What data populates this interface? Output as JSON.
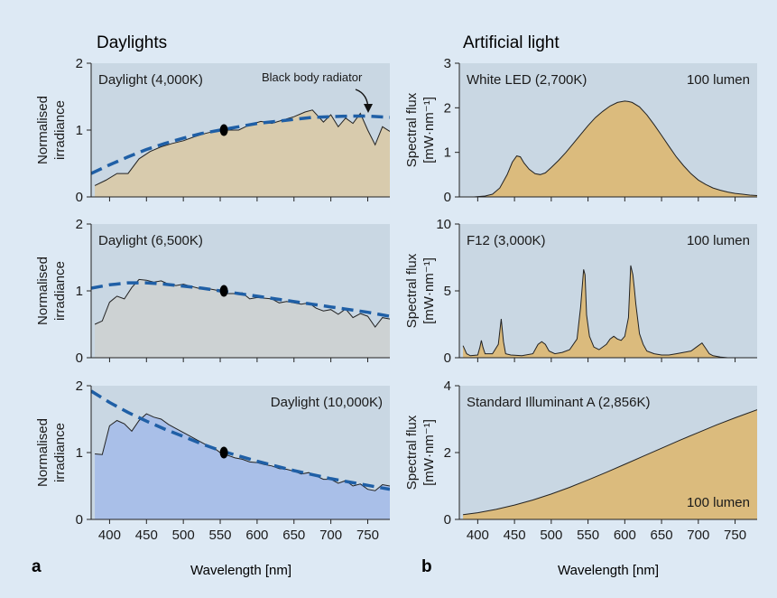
{
  "figure": {
    "left_title": "Daylights",
    "right_title": "Artificial light",
    "panel_a_label": "a",
    "panel_b_label": "b",
    "x_label": "Wavelength [nm]",
    "x_ticks": [
      "400",
      "450",
      "500",
      "550",
      "600",
      "650",
      "700",
      "750"
    ],
    "left_y_label": [
      "Normalised",
      "irradiance"
    ],
    "right_y_label": [
      "Spectral flux",
      "[mW·nm⁻¹]"
    ],
    "colors": {
      "background": "#dde9f4",
      "plot_bg": "#c9d7e3",
      "fill_4000": "#d8cbad",
      "fill_6500": "#cdd2d3",
      "fill_10000": "#a9bfe8",
      "fill_artificial": "#dbbb7d",
      "bb_dash": "#1f5fa6"
    }
  },
  "chart_data": [
    {
      "type": "area",
      "id": "d4000",
      "title": "Daylight (4,000K)",
      "annotation": "Black body radiator",
      "xlabel": "Wavelength [nm]",
      "ylabel": "Normalised irradiance",
      "xlim": [
        375,
        780
      ],
      "ylim": [
        0,
        2
      ],
      "yticks": [
        "0",
        "1",
        "2"
      ],
      "marker": [
        555,
        1.0
      ],
      "x": [
        380,
        395,
        410,
        425,
        440,
        455,
        470,
        485,
        500,
        515,
        530,
        545,
        560,
        575,
        590,
        605,
        620,
        635,
        650,
        665,
        675,
        690,
        700,
        710,
        720,
        730,
        740,
        750,
        760,
        770,
        780
      ],
      "y": [
        0.17,
        0.25,
        0.35,
        0.35,
        0.57,
        0.68,
        0.75,
        0.8,
        0.84,
        0.9,
        0.95,
        0.99,
        1.0,
        1.0,
        1.08,
        1.13,
        1.1,
        1.15,
        1.2,
        1.27,
        1.3,
        1.12,
        1.23,
        1.05,
        1.18,
        1.1,
        1.25,
        1.0,
        0.78,
        1.05,
        0.98
      ],
      "blackbody": {
        "x": [
          375,
          400,
          425,
          450,
          475,
          500,
          525,
          550,
          575,
          600,
          625,
          650,
          675,
          700,
          725,
          750,
          780
        ],
        "y": [
          0.35,
          0.48,
          0.6,
          0.71,
          0.8,
          0.88,
          0.95,
          1.0,
          1.05,
          1.1,
          1.13,
          1.16,
          1.19,
          1.2,
          1.21,
          1.21,
          1.19
        ]
      }
    },
    {
      "type": "area",
      "id": "d6500",
      "title": "Daylight (6,500K)",
      "xlabel": "Wavelength [nm]",
      "ylabel": "Normalised irradiance",
      "xlim": [
        375,
        780
      ],
      "ylim": [
        0,
        2
      ],
      "yticks": [
        "0",
        "1",
        "2"
      ],
      "marker": [
        555,
        1.0
      ],
      "x": [
        380,
        390,
        400,
        410,
        420,
        430,
        440,
        450,
        460,
        470,
        480,
        490,
        500,
        510,
        520,
        530,
        540,
        550,
        560,
        570,
        580,
        590,
        600,
        610,
        620,
        630,
        640,
        650,
        660,
        670,
        680,
        690,
        700,
        710,
        720,
        730,
        740,
        750,
        760,
        770,
        780
      ],
      "y": [
        0.5,
        0.55,
        0.83,
        0.92,
        0.88,
        1.05,
        1.17,
        1.16,
        1.13,
        1.15,
        1.1,
        1.08,
        1.1,
        1.07,
        1.04,
        1.04,
        1.02,
        1.0,
        0.96,
        0.96,
        0.97,
        0.88,
        0.9,
        0.89,
        0.88,
        0.82,
        0.84,
        0.82,
        0.8,
        0.82,
        0.74,
        0.7,
        0.72,
        0.65,
        0.73,
        0.6,
        0.66,
        0.62,
        0.46,
        0.6,
        0.58
      ],
      "blackbody": {
        "x": [
          375,
          400,
          425,
          450,
          475,
          500,
          525,
          550,
          575,
          600,
          625,
          650,
          675,
          700,
          725,
          750,
          780
        ],
        "y": [
          1.04,
          1.09,
          1.12,
          1.12,
          1.1,
          1.07,
          1.04,
          1.0,
          0.96,
          0.92,
          0.88,
          0.84,
          0.8,
          0.76,
          0.72,
          0.68,
          0.62
        ]
      }
    },
    {
      "type": "area",
      "id": "d10000",
      "title": "Daylight (10,000K)",
      "xlabel": "Wavelength [nm]",
      "ylabel": "Normalised irradiance",
      "xlim": [
        375,
        780
      ],
      "ylim": [
        0,
        2
      ],
      "yticks": [
        "0",
        "1",
        "2"
      ],
      "marker": [
        555,
        1.0
      ],
      "x": [
        380,
        390,
        400,
        410,
        420,
        430,
        440,
        450,
        460,
        470,
        480,
        490,
        500,
        510,
        520,
        530,
        540,
        550,
        560,
        570,
        580,
        590,
        600,
        610,
        620,
        630,
        640,
        650,
        660,
        670,
        680,
        690,
        700,
        710,
        720,
        730,
        740,
        750,
        760,
        770,
        780
      ],
      "y": [
        0.98,
        0.97,
        1.4,
        1.48,
        1.43,
        1.32,
        1.48,
        1.58,
        1.53,
        1.5,
        1.42,
        1.36,
        1.3,
        1.24,
        1.18,
        1.12,
        1.08,
        1.0,
        0.96,
        0.92,
        0.9,
        0.86,
        0.85,
        0.82,
        0.8,
        0.76,
        0.75,
        0.72,
        0.68,
        0.7,
        0.65,
        0.6,
        0.6,
        0.54,
        0.58,
        0.5,
        0.53,
        0.45,
        0.43,
        0.52,
        0.5
      ],
      "blackbody": {
        "x": [
          375,
          400,
          425,
          450,
          475,
          500,
          525,
          550,
          575,
          600,
          625,
          650,
          675,
          700,
          725,
          750,
          780
        ],
        "y": [
          1.92,
          1.75,
          1.6,
          1.47,
          1.35,
          1.24,
          1.13,
          1.03,
          0.95,
          0.87,
          0.8,
          0.73,
          0.67,
          0.61,
          0.56,
          0.51,
          0.45
        ]
      }
    },
    {
      "type": "area",
      "id": "led",
      "title": "White LED (2,700K)",
      "note": "100 lumen",
      "xlabel": "Wavelength [nm]",
      "ylabel": "Spectral flux [mW·nm⁻¹]",
      "xlim": [
        375,
        780
      ],
      "ylim": [
        0,
        3
      ],
      "yticks": [
        "0",
        "1",
        "2",
        "3"
      ],
      "x": [
        380,
        395,
        410,
        420,
        430,
        440,
        447,
        453,
        458,
        463,
        470,
        478,
        485,
        492,
        500,
        510,
        520,
        530,
        540,
        550,
        560,
        570,
        580,
        590,
        600,
        605,
        610,
        620,
        630,
        640,
        650,
        660,
        670,
        680,
        690,
        700,
        710,
        720,
        730,
        740,
        750,
        760,
        770,
        780
      ],
      "y": [
        0.0,
        0.0,
        0.02,
        0.06,
        0.2,
        0.5,
        0.78,
        0.92,
        0.9,
        0.76,
        0.62,
        0.52,
        0.5,
        0.54,
        0.66,
        0.82,
        1.0,
        1.2,
        1.4,
        1.6,
        1.78,
        1.92,
        2.04,
        2.12,
        2.15,
        2.14,
        2.12,
        2.02,
        1.84,
        1.62,
        1.38,
        1.14,
        0.9,
        0.7,
        0.52,
        0.38,
        0.28,
        0.2,
        0.15,
        0.11,
        0.08,
        0.06,
        0.04,
        0.03
      ]
    },
    {
      "type": "area",
      "id": "f12",
      "title": "F12 (3,000K)",
      "note": "100 lumen",
      "xlabel": "Wavelength [nm]",
      "ylabel": "Spectral flux [mW·nm⁻¹]",
      "xlim": [
        375,
        780
      ],
      "ylim": [
        0,
        10
      ],
      "yticks": [
        "0",
        "5",
        "10"
      ],
      "x": [
        380,
        385,
        390,
        400,
        403,
        405,
        407,
        410,
        420,
        428,
        432,
        435,
        438,
        445,
        460,
        475,
        482,
        487,
        492,
        497,
        505,
        515,
        525,
        535,
        540,
        544,
        546,
        548,
        552,
        558,
        565,
        575,
        580,
        585,
        590,
        595,
        600,
        605,
        608,
        611,
        613,
        615,
        620,
        625,
        630,
        640,
        650,
        660,
        670,
        680,
        690,
        700,
        705,
        710,
        715,
        720,
        730,
        740
      ],
      "y": [
        0.9,
        0.3,
        0.15,
        0.2,
        0.8,
        1.3,
        0.8,
        0.3,
        0.3,
        1.0,
        2.9,
        1.2,
        0.3,
        0.2,
        0.15,
        0.3,
        1.0,
        1.2,
        1.0,
        0.5,
        0.3,
        0.4,
        0.6,
        1.4,
        3.8,
        6.6,
        6.2,
        3.2,
        1.6,
        0.8,
        0.6,
        1.0,
        1.4,
        1.6,
        1.4,
        1.3,
        1.6,
        3.0,
        6.9,
        6.2,
        5.2,
        4.0,
        1.8,
        1.0,
        0.5,
        0.3,
        0.2,
        0.2,
        0.3,
        0.4,
        0.5,
        0.9,
        1.1,
        0.7,
        0.3,
        0.15,
        0.05,
        0.0
      ]
    },
    {
      "type": "area",
      "id": "illa",
      "title": "Standard Illuminant A (2,856K)",
      "note": "100 lumen",
      "xlabel": "Wavelength [nm]",
      "ylabel": "Spectral flux [mW·nm⁻¹]",
      "xlim": [
        375,
        780
      ],
      "ylim": [
        0,
        4
      ],
      "yticks": [
        "0",
        "2",
        "4"
      ],
      "x": [
        380,
        400,
        425,
        450,
        475,
        500,
        525,
        550,
        575,
        600,
        625,
        650,
        675,
        700,
        725,
        750,
        780
      ],
      "y": [
        0.14,
        0.2,
        0.3,
        0.43,
        0.58,
        0.76,
        0.96,
        1.18,
        1.41,
        1.65,
        1.89,
        2.13,
        2.37,
        2.6,
        2.83,
        3.04,
        3.28
      ]
    }
  ]
}
